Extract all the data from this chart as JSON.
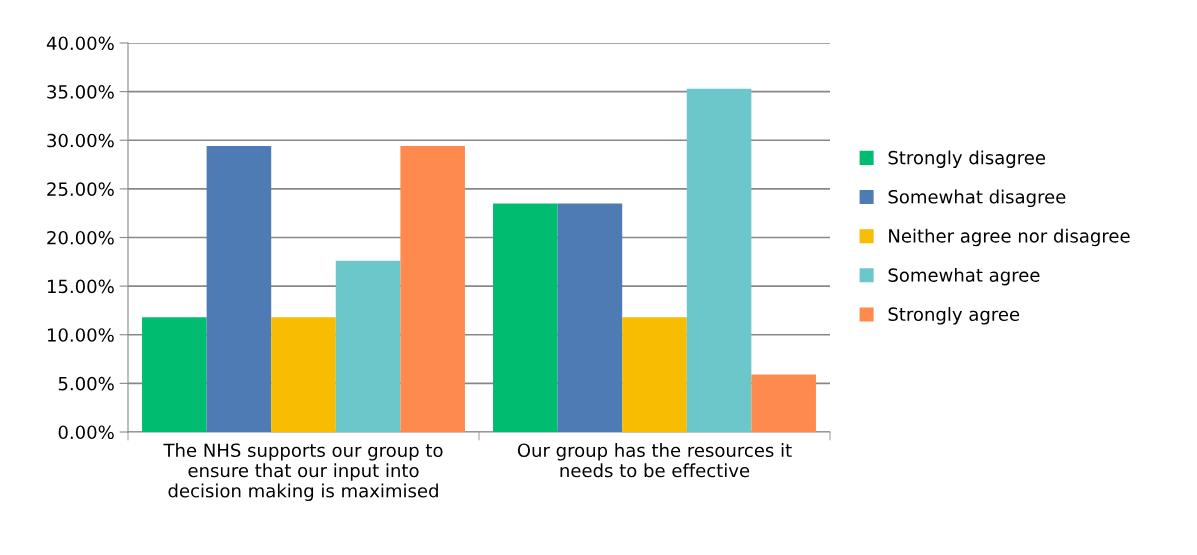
{
  "chart_data": {
    "type": "bar",
    "categories": [
      "The NHS supports our group to\nensure that our input into\ndecision making is maximised",
      "Our group has the resources it\nneeds to be effective"
    ],
    "series": [
      {
        "name": "Strongly disagree",
        "color": "#00bc70",
        "values": [
          11.8,
          23.5
        ]
      },
      {
        "name": "Somewhat disagree",
        "color": "#4f7bb4",
        "values": [
          29.4,
          23.5
        ]
      },
      {
        "name": "Neither agree nor disagree",
        "color": "#f8bc00",
        "values": [
          11.8,
          11.8
        ]
      },
      {
        "name": "Somewhat agree",
        "color": "#6cc7cb",
        "values": [
          17.6,
          35.3
        ]
      },
      {
        "name": "Strongly agree",
        "color": "#ff8a4e",
        "values": [
          29.4,
          5.9
        ]
      }
    ],
    "ylim": [
      0,
      40
    ],
    "yticks": [
      {
        "value": 0,
        "label": "0.00%"
      },
      {
        "value": 5,
        "label": "5.00%"
      },
      {
        "value": 10,
        "label": "10.00%"
      },
      {
        "value": 15,
        "label": "15.00%"
      },
      {
        "value": 20,
        "label": "20.00%"
      },
      {
        "value": 25,
        "label": "25.00%"
      },
      {
        "value": 30,
        "label": "30.00%"
      },
      {
        "value": 35,
        "label": "35.00%"
      },
      {
        "value": 40,
        "label": "40.00%"
      }
    ],
    "grid": "y",
    "legend": "right"
  }
}
